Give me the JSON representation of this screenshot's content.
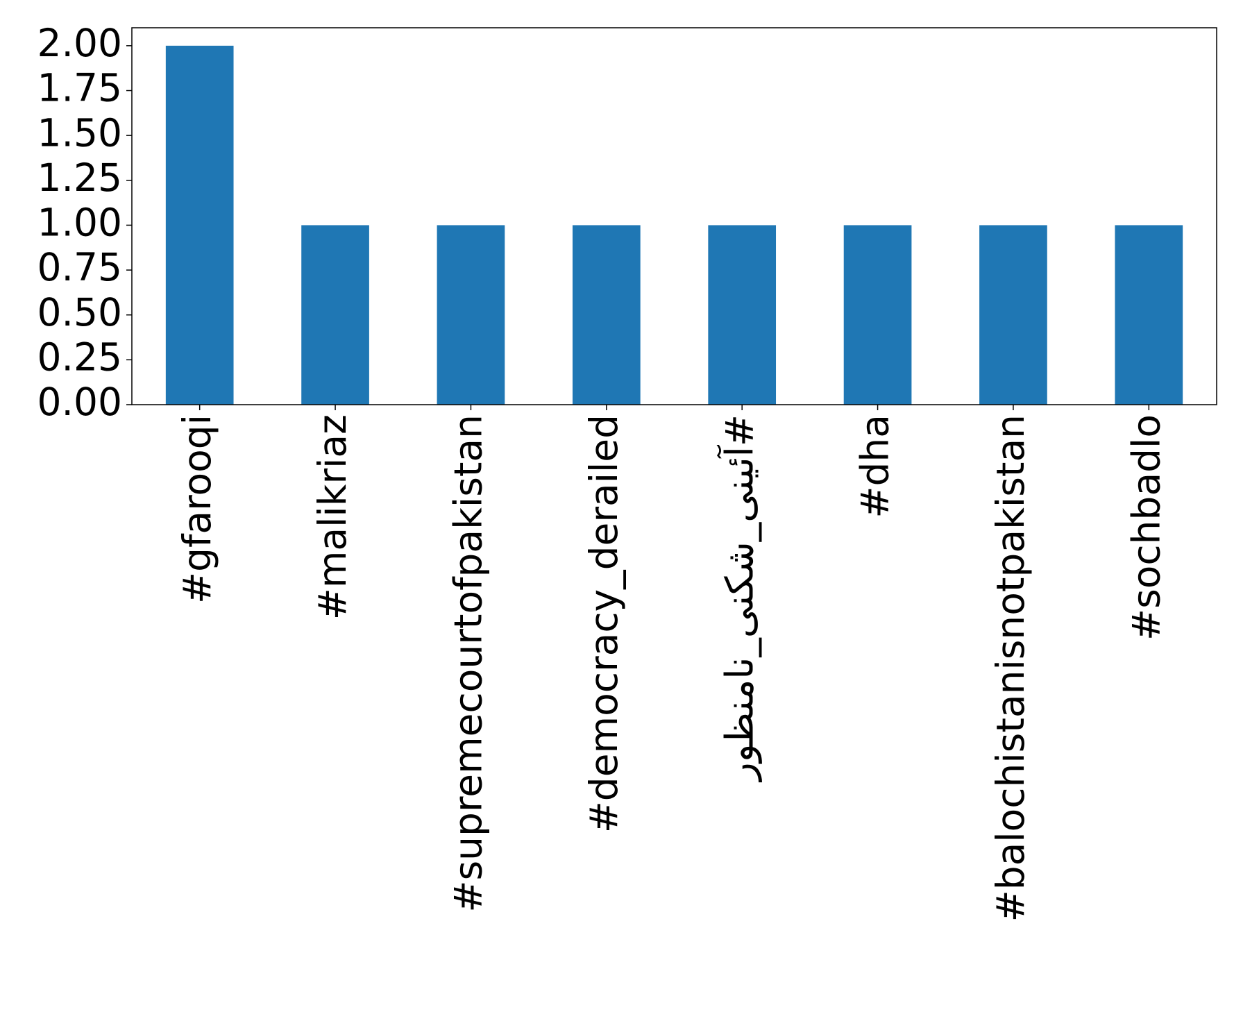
{
  "chart_data": {
    "type": "bar",
    "categories": [
      "#gfarooqi",
      "#malikriaz",
      "#supremecourtofpakistan",
      "#democracy_derailed",
      "#آئینی_شکنی_نامنظور",
      "#dha",
      "#balochistanisnotpakistan",
      "#sochbadlo"
    ],
    "values": [
      2,
      1,
      1,
      1,
      1,
      1,
      1,
      1
    ],
    "color": "#1f77b4",
    "ylim": [
      0,
      2.1
    ],
    "yticks": [
      {
        "value": 0,
        "label": "0.00"
      },
      {
        "value": 0.25,
        "label": "0.25"
      },
      {
        "value": 0.5,
        "label": "0.50"
      },
      {
        "value": 0.75,
        "label": "0.75"
      },
      {
        "value": 1,
        "label": "1.00"
      },
      {
        "value": 1.25,
        "label": "1.25"
      },
      {
        "value": 1.5,
        "label": "1.50"
      },
      {
        "value": 1.75,
        "label": "1.75"
      },
      {
        "value": 2,
        "label": "2.00"
      }
    ],
    "grid": false
  }
}
